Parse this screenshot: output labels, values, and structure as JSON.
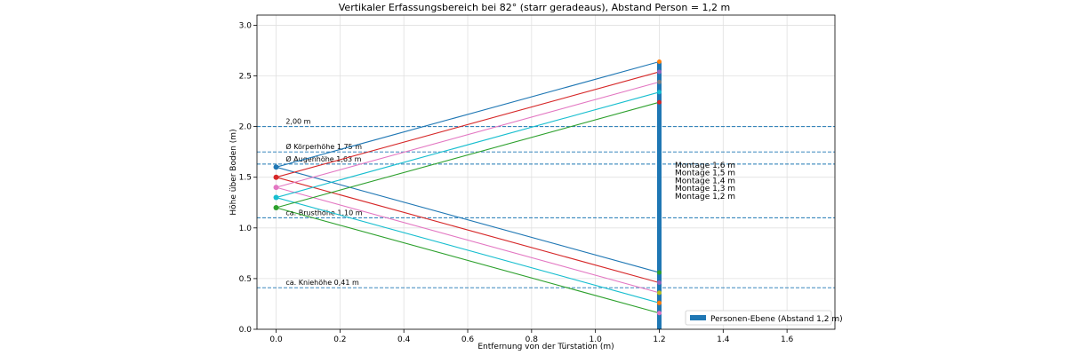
{
  "chart_data": {
    "type": "line",
    "title": "Vertikaler Erfassungsbereich bei 82° (starr geradeaus), Abstand Person = 1,2 m",
    "xlabel": "Entfernung von der Türstation (m)",
    "ylabel": "Höhe über Boden (m)",
    "xlim": [
      -0.06,
      1.75
    ],
    "ylim": [
      0,
      3.1
    ],
    "xticks": [
      0.0,
      0.2,
      0.4,
      0.6,
      0.8,
      1.0,
      1.2,
      1.4,
      1.6
    ],
    "xtick_labels": [
      "0.0",
      "0.2",
      "0.4",
      "0.6",
      "0.8",
      "1.0",
      "1.2",
      "1.4",
      "1.6"
    ],
    "yticks": [
      0.0,
      0.5,
      1.0,
      1.5,
      2.0,
      2.5,
      3.0
    ],
    "ytick_labels": [
      "0.0",
      "0.5",
      "1.0",
      "1.5",
      "2.0",
      "2.5",
      "3.0"
    ],
    "grid": true,
    "person_distance": 1.2,
    "series": [
      {
        "color": "#1f77b4",
        "mount": 1.6,
        "upper_end": 2.64,
        "lower_end": 0.56
      },
      {
        "color": "#d62728",
        "mount": 1.5,
        "upper_end": 2.54,
        "lower_end": 0.46
      },
      {
        "color": "#e377c2",
        "mount": 1.4,
        "upper_end": 2.44,
        "lower_end": 0.36
      },
      {
        "color": "#17becf",
        "mount": 1.3,
        "upper_end": 2.34,
        "lower_end": 0.26
      },
      {
        "color": "#2ca02c",
        "mount": 1.2,
        "upper_end": 2.24,
        "lower_end": 0.16
      }
    ],
    "endpoint_markers": [
      {
        "y": 2.64,
        "color": "#ff7f0e"
      },
      {
        "y": 2.54,
        "color": "#9467bd"
      },
      {
        "y": 2.44,
        "color": "#7f7f7f"
      },
      {
        "y": 2.34,
        "color": "#17becf"
      },
      {
        "y": 2.24,
        "color": "#d62728"
      },
      {
        "y": 0.56,
        "color": "#2ca02c"
      },
      {
        "y": 0.46,
        "color": "#9467bd"
      },
      {
        "y": 0.36,
        "color": "#bcbd22"
      },
      {
        "y": 0.26,
        "color": "#ff7f0e"
      },
      {
        "y": 0.16,
        "color": "#e377c2"
      }
    ],
    "reference_lines": [
      {
        "y": 2.0,
        "label": "2,00 m"
      },
      {
        "y": 1.75,
        "label": "Ø Körperhöhe 1,75 m"
      },
      {
        "y": 1.63,
        "label": "Ø Augenhöhe 1,63 m"
      },
      {
        "y": 1.1,
        "label": "ca. Brusthöhe 1,10 m"
      },
      {
        "y": 0.41,
        "label": "ca. Kniehöhe 0,41 m"
      }
    ],
    "montage_labels": [
      "Montage 1,6 m",
      "Montage 1,5 m",
      "Montage 1,4 m",
      "Montage 1,3 m",
      "Montage 1,2 m"
    ],
    "legend": {
      "label": "Personen-Ebene (Abstand 1,2 m)",
      "color": "#1f77b4",
      "position": "lower-right"
    }
  }
}
